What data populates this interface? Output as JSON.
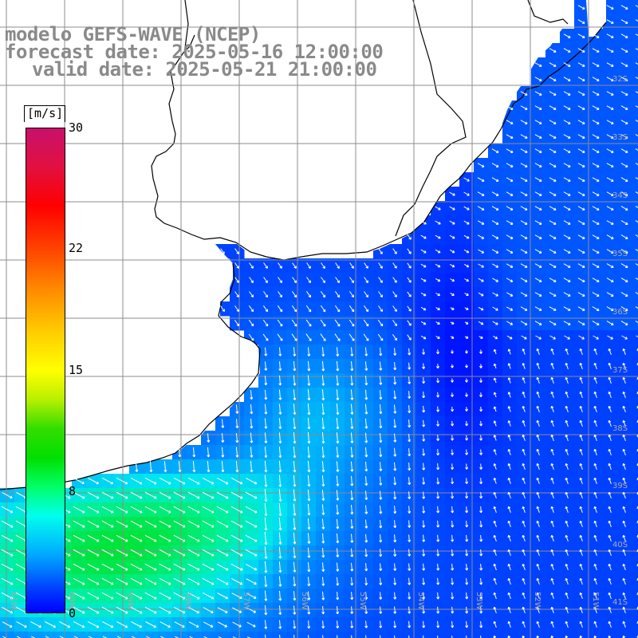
{
  "title": {
    "line1": "modelo GEFS-WAVE (NCEP)",
    "line2": "forecast date: 2025-05-16 12:00:00",
    "line3": "valid date: 2025-05-21 21:00:00"
  },
  "colorbar": {
    "unit": "[m/s]",
    "ticks": [
      "30",
      "22",
      "15",
      "8",
      "0"
    ],
    "tick_values": [
      30,
      22,
      15,
      8,
      0
    ],
    "range": [
      0,
      30
    ],
    "colors": [
      "#0000ff",
      "#00aaff",
      "#00ffee",
      "#00e000",
      "#ffff00",
      "#ff8800",
      "#ff0000",
      "#c8106c"
    ]
  },
  "map": {
    "lat_labels": [
      "32S",
      "33S",
      "34S",
      "35S",
      "36S",
      "37S",
      "38S",
      "39S",
      "40S",
      "41S"
    ],
    "lon_labels": [
      "61W",
      "60W",
      "59W",
      "58W",
      "57W",
      "56W",
      "55W",
      "54W",
      "53W",
      "52W",
      "51W",
      "50W"
    ],
    "land_color": "#ffffff",
    "grid_color": "#8c8c8c"
  }
}
